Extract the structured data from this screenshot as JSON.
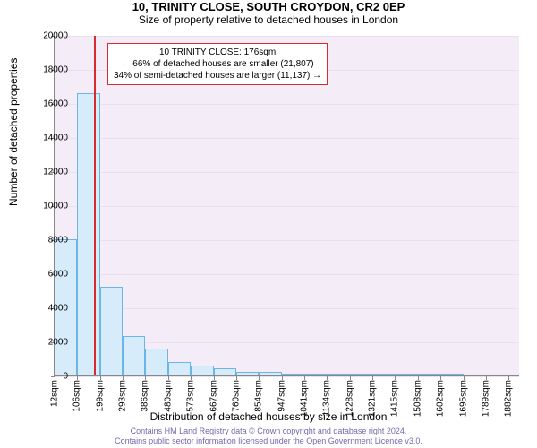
{
  "title": "10, TRINITY CLOSE, SOUTH CROYDON, CR2 0EP",
  "subtitle": "Size of property relative to detached houses in London",
  "chart": {
    "type": "histogram",
    "ylabel": "Number of detached properties",
    "xlabel": "Distribution of detached houses by size in London",
    "ylim_max": 20000,
    "ytick_step": 2000,
    "yticks": [
      0,
      2000,
      4000,
      6000,
      8000,
      10000,
      12000,
      14000,
      16000,
      18000,
      20000
    ],
    "xticks": [
      "12sqm",
      "106sqm",
      "199sqm",
      "293sqm",
      "386sqm",
      "480sqm",
      "573sqm",
      "667sqm",
      "760sqm",
      "854sqm",
      "947sqm",
      "1041sqm",
      "1134sqm",
      "1228sqm",
      "1321sqm",
      "1415sqm",
      "1508sqm",
      "1602sqm",
      "1695sqm",
      "1789sqm",
      "1882sqm"
    ],
    "bar_x_start": 12,
    "bar_x_step": 93.5,
    "x_domain_min": 12,
    "x_domain_max": 1929,
    "bars": [
      8000,
      16600,
      5200,
      2300,
      1600,
      800,
      600,
      400,
      200,
      200,
      100,
      100,
      100,
      50,
      50,
      50,
      50,
      50,
      0,
      0
    ],
    "bar_fill": "#d7ecfb",
    "bar_border": "#6cb5e8",
    "plot_bg": "#f4ecf7",
    "grid_color": "#e8dff0",
    "marker_value": 176,
    "marker_color": "#d62c2c"
  },
  "annotation": {
    "line1": "10 TRINITY CLOSE: 176sqm",
    "line2": "← 66% of detached houses are smaller (21,807)",
    "line3": "34% of semi-detached houses are larger (11,137) →"
  },
  "footer": {
    "line1": "Contains HM Land Registry data © Crown copyright and database right 2024.",
    "line2": "Contains public sector information licensed under the Open Government Licence v3.0."
  }
}
